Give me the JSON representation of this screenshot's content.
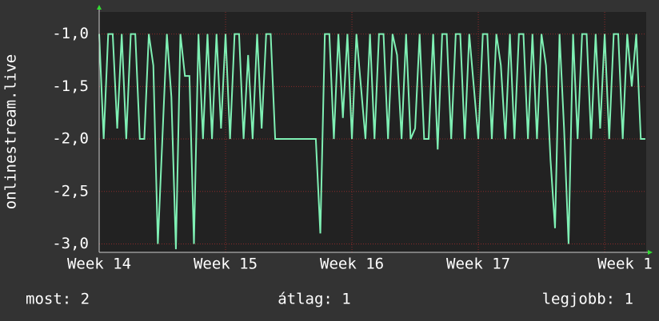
{
  "chart_data": {
    "type": "line",
    "ylabel": "onlinestream.live",
    "x": [
      0,
      0.25,
      0.5,
      0.75,
      1,
      1.25,
      1.5,
      1.75,
      2,
      2.25,
      2.5,
      2.75,
      3,
      3.25,
      3.5,
      3.75,
      4,
      4.25,
      4.5,
      4.75,
      5,
      5.25,
      5.5,
      5.75,
      6,
      6.25,
      6.5,
      6.75,
      7,
      7.25,
      7.5,
      7.75,
      8,
      8.25,
      8.5,
      8.75,
      9,
      9.25,
      9.5,
      9.75,
      10,
      10.25,
      10.5,
      10.75,
      11,
      11.25,
      11.5,
      11.75,
      12,
      12.25,
      12.5,
      12.75,
      13,
      13.25,
      13.5,
      13.75,
      14,
      14.25,
      14.5,
      14.75,
      15,
      15.25,
      15.5,
      15.75,
      16,
      16.25,
      16.5,
      16.75,
      17,
      17.25,
      17.5,
      17.75,
      18,
      18.25,
      18.5,
      18.75,
      19,
      19.25,
      19.5,
      19.75,
      20,
      20.25,
      20.5,
      20.75,
      21,
      21.25,
      21.5,
      21.75,
      22,
      22.25,
      22.5,
      22.75,
      23,
      23.25,
      23.5,
      23.75,
      24,
      24.25,
      24.5,
      24.75,
      25,
      25.25,
      25.5,
      25.75,
      26,
      26.25,
      26.5,
      26.75,
      27,
      27.25,
      27.5,
      27.75,
      28,
      28.25,
      28.5,
      28.75,
      29,
      29.25,
      29.5,
      29.75,
      30,
      30.25
    ],
    "series": [
      {
        "color": "#7ff0b4",
        "values": [
          -1,
          -2,
          -1,
          -1,
          -1.9,
          -1,
          -2,
          -1,
          -1,
          -2,
          -2,
          -1,
          -1.3,
          -3,
          -2,
          -1,
          -1.6,
          -3.05,
          -1,
          -1.4,
          -1.4,
          -3,
          -1,
          -2,
          -1,
          -2,
          -1,
          -1.9,
          -1,
          -2,
          -1,
          -1,
          -2,
          -1.2,
          -2,
          -1,
          -1.9,
          -1,
          -1,
          -2,
          -2,
          -2,
          -2,
          -2,
          -2,
          -2,
          -2,
          -2,
          -2,
          -2.9,
          -1,
          -1,
          -2,
          -1,
          -1.8,
          -1,
          -2,
          -1,
          -1.5,
          -2,
          -1,
          -2,
          -1,
          -1,
          -2,
          -1,
          -1.2,
          -2,
          -1,
          -2,
          -1.9,
          -1,
          -2,
          -2,
          -1,
          -2.1,
          -1,
          -1,
          -2,
          -1,
          -1,
          -2,
          -1,
          -1.5,
          -2,
          -1,
          -1,
          -2,
          -1,
          -1.3,
          -2,
          -1,
          -2,
          -1,
          -1,
          -2,
          -1,
          -2,
          -1,
          -1.3,
          -2.2,
          -2.85,
          -1,
          -1.9,
          -3,
          -1,
          -2,
          -1,
          -1,
          -2,
          -1,
          -1.9,
          -1,
          -2,
          -1,
          -1,
          -2,
          -1,
          -1.5,
          -1,
          -2,
          -2
        ]
      }
    ],
    "xlim": [
      0,
      30.3
    ],
    "xticks": [
      {
        "value": 0,
        "label": "Week 14"
      },
      {
        "value": 7,
        "label": "Week 15"
      },
      {
        "value": 14,
        "label": "Week 16"
      },
      {
        "value": 21,
        "label": "Week 17"
      },
      {
        "value": 28,
        "label": "Week 1"
      }
    ],
    "ylim": [
      -3.08,
      -0.79
    ],
    "yticks": [
      {
        "value": -1,
        "label": "-1,0"
      },
      {
        "value": -1.5,
        "label": "-1,5"
      },
      {
        "value": -2,
        "label": "-2,0"
      },
      {
        "value": -2.5,
        "label": "-2,5"
      },
      {
        "value": -3,
        "label": "-3,0"
      }
    ],
    "grid": true,
    "footer": [
      "most: 2",
      "átlag: 1",
      "legjobb: 1"
    ]
  }
}
